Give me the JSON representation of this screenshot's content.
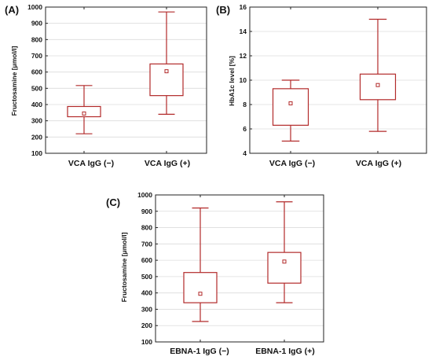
{
  "chart_data": [
    {
      "type": "box",
      "panel_label": "(A)",
      "title": "",
      "xlabel": "",
      "ylabel": "Fructosamine [μmol/l]",
      "ylim": [
        100,
        1000
      ],
      "yticks": [
        100,
        200,
        300,
        400,
        500,
        600,
        700,
        800,
        900,
        1000
      ],
      "ytick_labels": [
        "100",
        "200",
        "300",
        "400",
        "500",
        "600",
        "700",
        "800",
        "900",
        "1000"
      ],
      "categories": [
        "VCA IgG (−)",
        "VCA IgG (+)"
      ],
      "boxes": [
        {
          "whisker_low": 220,
          "q1": 325,
          "median": 345,
          "q3": 388,
          "whisker_high": 517
        },
        {
          "whisker_low": 340,
          "q1": 455,
          "median": 605,
          "q3": 650,
          "whisker_high": 970
        }
      ],
      "grid": true,
      "color": "#b22a2a"
    },
    {
      "type": "box",
      "panel_label": "(B)",
      "title": "",
      "xlabel": "",
      "ylabel": "HbA1c level [%]",
      "ylim": [
        4,
        16
      ],
      "yticks": [
        4,
        6,
        8,
        10,
        12,
        14,
        16
      ],
      "ytick_labels": [
        "4",
        "6",
        "8",
        "10",
        "12",
        "14",
        "16"
      ],
      "categories": [
        "VCA IgG (−)",
        "VCA IgG (+)"
      ],
      "boxes": [
        {
          "whisker_low": 5.0,
          "q1": 6.3,
          "median": 8.1,
          "q3": 9.3,
          "whisker_high": 10.0
        },
        {
          "whisker_low": 5.8,
          "q1": 8.4,
          "median": 9.6,
          "q3": 10.5,
          "whisker_high": 15.0
        }
      ],
      "grid": true,
      "color": "#b22a2a"
    },
    {
      "type": "box",
      "panel_label": "(C)",
      "title": "",
      "xlabel": "",
      "ylabel": "Fructosamine [μmol/l]",
      "ylim": [
        100,
        1000
      ],
      "yticks": [
        100,
        200,
        300,
        400,
        500,
        600,
        700,
        800,
        900,
        1000
      ],
      "ytick_labels": [
        "100",
        "200",
        "300",
        "400",
        "500",
        "600",
        "700",
        "800",
        "900",
        "1000"
      ],
      "categories": [
        "EBNA-1 IgG (−)",
        "EBNA-1 IgG (+)"
      ],
      "boxes": [
        {
          "whisker_low": 225,
          "q1": 340,
          "median": 395,
          "q3": 525,
          "whisker_high": 920
        },
        {
          "whisker_low": 340,
          "q1": 460,
          "median": 592,
          "q3": 648,
          "whisker_high": 958
        }
      ],
      "grid": true,
      "color": "#b22a2a"
    }
  ]
}
